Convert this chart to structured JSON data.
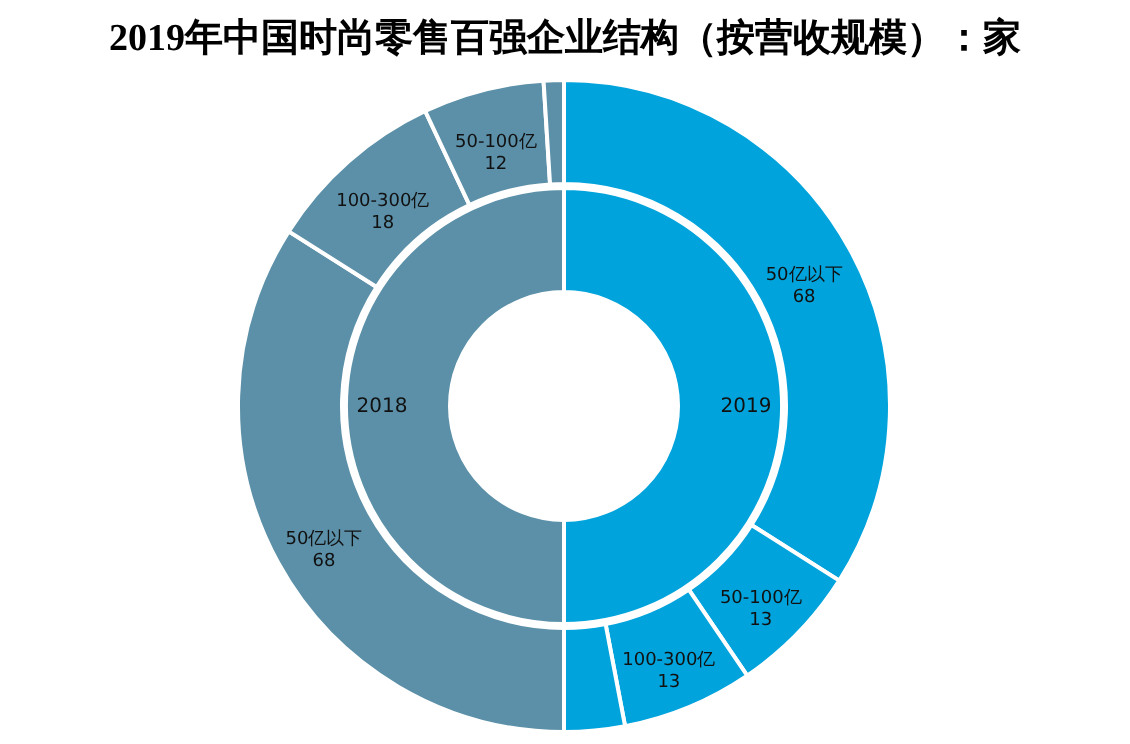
{
  "chart_data": [
    {
      "type": "donut",
      "title": "2019年中国时尚零售百强企业结构（按营收规模）：家",
      "categories": [
        "50亿以下",
        "50-100亿",
        "100-300亿",
        null,
        "50亿以下",
        "100-300亿",
        "50-100亿",
        null
      ],
      "values": [
        68,
        13,
        13,
        6,
        68,
        18,
        12,
        2
      ],
      "colors": [
        "#00a3db",
        "#00a3db",
        "#00a3db",
        "#00a3db",
        "#5b90a8",
        "#5b90a8",
        "#5b90a8",
        "#5b90a8"
      ],
      "value_labels": [
        "68",
        "13",
        "13",
        null,
        "68",
        "18",
        "12",
        null
      ]
    },
    {
      "type": "donut",
      "categories": [
        "2019",
        "2018"
      ],
      "values": [
        50,
        50
      ],
      "colors": [
        "#00a3db",
        "#5b90a8"
      ]
    }
  ]
}
